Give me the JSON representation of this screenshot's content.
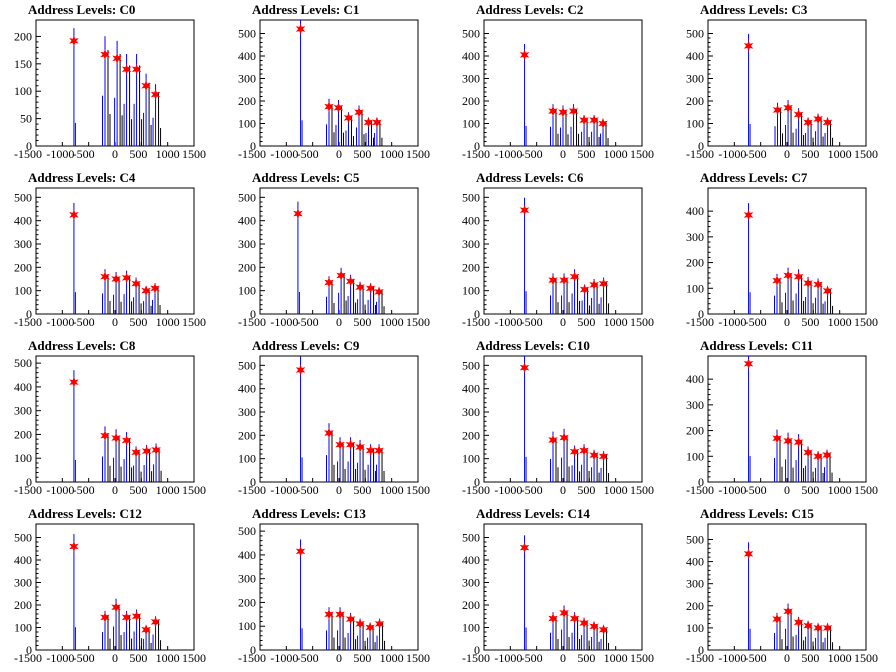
{
  "colors": {
    "histogram_blue": "#0000ff",
    "histogram_black": "#000000",
    "marker_red": "#ff0000",
    "marker_outline": "#990000"
  },
  "chart_data": [
    {
      "type": "bar",
      "title": "Address Levels: C0",
      "xlim": [
        -1500,
        1500
      ],
      "ylim": [
        0,
        230
      ],
      "yticks": [
        0,
        50,
        100,
        150,
        200
      ],
      "xticks": [
        -1500,
        -1000,
        -500,
        0,
        500,
        1000,
        1500
      ],
      "peaks_x": [
        -780,
        -190,
        40,
        220,
        410,
        590,
        770
      ],
      "peaks_y": [
        192,
        167,
        160,
        140,
        140,
        110,
        94
      ]
    },
    {
      "type": "bar",
      "title": "Address Levels: C1",
      "xlim": [
        -1500,
        1500
      ],
      "ylim": [
        0,
        560
      ],
      "yticks": [
        0,
        100,
        200,
        300,
        400,
        500
      ],
      "xticks": [
        -1500,
        -1000,
        -500,
        0,
        500,
        1000,
        1500
      ],
      "peaks_x": [
        -730,
        -190,
        -10,
        180,
        380,
        560,
        720
      ],
      "peaks_y": [
        520,
        175,
        170,
        125,
        150,
        105,
        105
      ]
    },
    {
      "type": "bar",
      "title": "Address Levels: C2",
      "xlim": [
        -1500,
        1500
      ],
      "ylim": [
        0,
        560
      ],
      "yticks": [
        0,
        100,
        200,
        300,
        400,
        500
      ],
      "xticks": [
        -1500,
        -1000,
        -500,
        0,
        500,
        1000,
        1500
      ],
      "peaks_x": [
        -730,
        -190,
        0,
        200,
        400,
        590,
        760
      ],
      "peaks_y": [
        405,
        155,
        150,
        155,
        115,
        115,
        100
      ]
    },
    {
      "type": "bar",
      "title": "Address Levels: C3",
      "xlim": [
        -1500,
        1500
      ],
      "ylim": [
        0,
        560
      ],
      "yticks": [
        0,
        100,
        200,
        300,
        400,
        500
      ],
      "xticks": [
        -1500,
        -1000,
        -500,
        0,
        500,
        1000,
        1500
      ],
      "peaks_x": [
        -730,
        -180,
        20,
        220,
        400,
        590,
        770
      ],
      "peaks_y": [
        445,
        160,
        170,
        140,
        105,
        120,
        105
      ]
    },
    {
      "type": "bar",
      "title": "Address Levels: C4",
      "xlim": [
        -1500,
        1500
      ],
      "ylim": [
        0,
        540
      ],
      "yticks": [
        0,
        100,
        200,
        300,
        400,
        500
      ],
      "xticks": [
        -1500,
        -1000,
        -500,
        0,
        500,
        1000,
        1500
      ],
      "peaks_x": [
        -780,
        -190,
        20,
        220,
        400,
        590,
        760
      ],
      "peaks_y": [
        425,
        160,
        150,
        155,
        130,
        100,
        110
      ]
    },
    {
      "type": "bar",
      "title": "Address Levels: C5",
      "xlim": [
        -1500,
        1500
      ],
      "ylim": [
        0,
        540
      ],
      "yticks": [
        0,
        100,
        200,
        300,
        400,
        500
      ],
      "xticks": [
        -1500,
        -1000,
        -500,
        0,
        500,
        1000,
        1500
      ],
      "peaks_x": [
        -780,
        -190,
        40,
        220,
        400,
        600,
        760
      ],
      "peaks_y": [
        430,
        135,
        165,
        140,
        115,
        110,
        95
      ]
    },
    {
      "type": "bar",
      "title": "Address Levels: C6",
      "xlim": [
        -1500,
        1500
      ],
      "ylim": [
        0,
        540
      ],
      "yticks": [
        0,
        100,
        200,
        300,
        400,
        500
      ],
      "xticks": [
        -1500,
        -1000,
        -500,
        0,
        500,
        1000,
        1500
      ],
      "peaks_x": [
        -730,
        -190,
        20,
        220,
        410,
        590,
        770
      ],
      "peaks_y": [
        445,
        145,
        145,
        160,
        105,
        125,
        130
      ]
    },
    {
      "type": "bar",
      "title": "Address Levels: C7",
      "xlim": [
        -1500,
        1500
      ],
      "ylim": [
        0,
        490
      ],
      "yticks": [
        0,
        100,
        200,
        300,
        400
      ],
      "xticks": [
        -1500,
        -1000,
        -500,
        0,
        500,
        1000,
        1500
      ],
      "peaks_x": [
        -730,
        -190,
        20,
        220,
        400,
        590,
        770
      ],
      "peaks_y": [
        385,
        130,
        150,
        145,
        120,
        115,
        90
      ]
    },
    {
      "type": "bar",
      "title": "Address Levels: C8",
      "xlim": [
        -1500,
        1500
      ],
      "ylim": [
        0,
        530
      ],
      "yticks": [
        0,
        100,
        200,
        300,
        400,
        500
      ],
      "xticks": [
        -1500,
        -1000,
        -500,
        0,
        500,
        1000,
        1500
      ],
      "peaks_x": [
        -780,
        -190,
        20,
        220,
        400,
        600,
        780
      ],
      "peaks_y": [
        420,
        195,
        185,
        175,
        125,
        130,
        135
      ]
    },
    {
      "type": "bar",
      "title": "Address Levels: C9",
      "xlim": [
        -1500,
        1500
      ],
      "ylim": [
        0,
        540
      ],
      "yticks": [
        0,
        100,
        200,
        300,
        400,
        500
      ],
      "xticks": [
        -1500,
        -1000,
        -500,
        0,
        500,
        1000,
        1500
      ],
      "peaks_x": [
        -730,
        -190,
        20,
        220,
        400,
        600,
        760
      ],
      "peaks_y": [
        480,
        210,
        160,
        160,
        150,
        135,
        135
      ]
    },
    {
      "type": "bar",
      "title": "Address Levels: C10",
      "xlim": [
        -1500,
        1500
      ],
      "ylim": [
        0,
        540
      ],
      "yticks": [
        0,
        100,
        200,
        300,
        400,
        500
      ],
      "xticks": [
        -1500,
        -1000,
        -500,
        0,
        500,
        1000,
        1500
      ],
      "peaks_x": [
        -730,
        -190,
        20,
        220,
        400,
        590,
        770
      ],
      "peaks_y": [
        490,
        180,
        190,
        130,
        135,
        115,
        110
      ]
    },
    {
      "type": "bar",
      "title": "Address Levels: C11",
      "xlim": [
        -1500,
        1500
      ],
      "ylim": [
        0,
        490
      ],
      "yticks": [
        0,
        100,
        200,
        300,
        400
      ],
      "xticks": [
        -1500,
        -1000,
        -500,
        0,
        500,
        1000,
        1500
      ],
      "peaks_x": [
        -730,
        -190,
        20,
        220,
        400,
        590,
        760
      ],
      "peaks_y": [
        460,
        170,
        160,
        155,
        115,
        100,
        105
      ]
    },
    {
      "type": "bar",
      "title": "Address Levels: C12",
      "xlim": [
        -1500,
        1500
      ],
      "ylim": [
        0,
        560
      ],
      "yticks": [
        0,
        100,
        200,
        300,
        400,
        500
      ],
      "xticks": [
        -1500,
        -1000,
        -500,
        0,
        500,
        1000,
        1500
      ],
      "peaks_x": [
        -780,
        -190,
        20,
        220,
        410,
        590,
        770
      ],
      "peaks_y": [
        460,
        145,
        190,
        145,
        150,
        90,
        125
      ]
    },
    {
      "type": "bar",
      "title": "Address Levels: C13",
      "xlim": [
        -1500,
        1500
      ],
      "ylim": [
        0,
        530
      ],
      "yticks": [
        0,
        100,
        200,
        300,
        400,
        500
      ],
      "xticks": [
        -1500,
        -1000,
        -500,
        0,
        500,
        1000,
        1500
      ],
      "peaks_x": [
        -730,
        -190,
        20,
        220,
        400,
        590,
        770
      ],
      "peaks_y": [
        415,
        150,
        150,
        130,
        110,
        95,
        110
      ]
    },
    {
      "type": "bar",
      "title": "Address Levels: C14",
      "xlim": [
        -1500,
        1500
      ],
      "ylim": [
        0,
        560
      ],
      "yticks": [
        0,
        100,
        200,
        300,
        400,
        500
      ],
      "xticks": [
        -1500,
        -1000,
        -500,
        0,
        500,
        1000,
        1500
      ],
      "peaks_x": [
        -730,
        -190,
        20,
        220,
        400,
        590,
        770
      ],
      "peaks_y": [
        455,
        140,
        165,
        140,
        120,
        105,
        90
      ]
    },
    {
      "type": "bar",
      "title": "Address Levels: C15",
      "xlim": [
        -1500,
        1500
      ],
      "ylim": [
        0,
        570
      ],
      "yticks": [
        0,
        100,
        200,
        300,
        400,
        500
      ],
      "xticks": [
        -1500,
        -1000,
        -500,
        0,
        500,
        1000,
        1500
      ],
      "peaks_x": [
        -730,
        -190,
        20,
        220,
        400,
        590,
        770
      ],
      "peaks_y": [
        435,
        140,
        175,
        125,
        110,
        100,
        100
      ]
    }
  ]
}
